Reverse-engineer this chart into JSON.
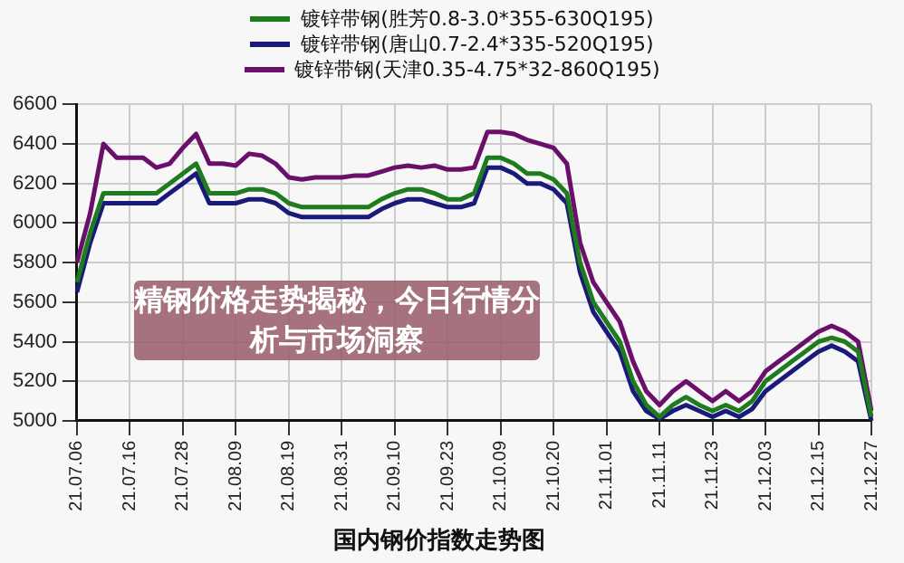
{
  "chart_data": {
    "type": "line",
    "title": "国内钢价指数走势图",
    "annotations": [
      "精钢价格走势揭秘，今日行情分析与市场洞察"
    ],
    "categories": [
      "21.07.06",
      null,
      null,
      null,
      "21.07.16",
      null,
      null,
      null,
      "21.07.28",
      null,
      null,
      null,
      "21.08.09",
      null,
      null,
      null,
      "21.08.19",
      null,
      null,
      null,
      "21.08.31",
      null,
      null,
      null,
      "21.09.10",
      null,
      null,
      null,
      "21.09.23",
      null,
      null,
      null,
      "21.10.09",
      null,
      null,
      null,
      "21.10.20",
      null,
      null,
      null,
      "21.11.01",
      null,
      null,
      null,
      "21.11.11",
      null,
      null,
      null,
      "21.11.23",
      null,
      null,
      null,
      "21.12.03",
      null,
      null,
      null,
      "21.12.15",
      null,
      null,
      null,
      "21.12.27"
    ],
    "series": [
      {
        "name": "镀锌带钢(胜芳0.8-3.0*355-630Q195)",
        "color": "#1e7b1e",
        "values": [
          5700,
          5950,
          6150,
          6150,
          6150,
          6150,
          6150,
          6200,
          6250,
          6300,
          6150,
          6150,
          6150,
          6170,
          6170,
          6150,
          6100,
          6080,
          6080,
          6080,
          6080,
          6080,
          6080,
          6120,
          6150,
          6170,
          6170,
          6150,
          6120,
          6120,
          6150,
          6330,
          6330,
          6300,
          6250,
          6250,
          6220,
          6150,
          5800,
          5600,
          5500,
          5400,
          5200,
          5080,
          5020,
          5080,
          5120,
          5080,
          5050,
          5080,
          5050,
          5100,
          5200,
          5250,
          5300,
          5350,
          5400,
          5420,
          5400,
          5350,
          5020
        ]
      },
      {
        "name": "镀锌带钢(唐山0.7-2.4*335-520Q195)",
        "color": "#1a1a7a",
        "values": [
          5650,
          5900,
          6100,
          6100,
          6100,
          6100,
          6100,
          6150,
          6200,
          6250,
          6100,
          6100,
          6100,
          6120,
          6120,
          6100,
          6050,
          6030,
          6030,
          6030,
          6030,
          6030,
          6030,
          6070,
          6100,
          6120,
          6120,
          6100,
          6080,
          6080,
          6100,
          6280,
          6280,
          6250,
          6200,
          6200,
          6170,
          6100,
          5750,
          5550,
          5450,
          5350,
          5150,
          5050,
          5010,
          5050,
          5080,
          5050,
          5020,
          5050,
          5020,
          5060,
          5150,
          5200,
          5250,
          5300,
          5350,
          5380,
          5350,
          5300,
          5000
        ]
      },
      {
        "name": "镀锌带钢(天津0.35-4.75*32-860Q195)",
        "color": "#6a0f6a",
        "values": [
          5800,
          6050,
          6400,
          6330,
          6330,
          6330,
          6280,
          6300,
          6380,
          6450,
          6300,
          6300,
          6290,
          6350,
          6340,
          6300,
          6230,
          6220,
          6230,
          6230,
          6230,
          6240,
          6240,
          6260,
          6280,
          6290,
          6280,
          6290,
          6270,
          6270,
          6280,
          6460,
          6460,
          6450,
          6420,
          6400,
          6380,
          6300,
          5900,
          5700,
          5600,
          5500,
          5300,
          5150,
          5080,
          5150,
          5200,
          5150,
          5100,
          5150,
          5100,
          5150,
          5250,
          5300,
          5350,
          5400,
          5450,
          5480,
          5450,
          5400,
          5050
        ]
      }
    ],
    "ylim": [
      5000,
      6600
    ],
    "yticks": [
      5000,
      5200,
      5400,
      5600,
      5800,
      6000,
      6200,
      6400,
      6600
    ],
    "grid": true,
    "legend": "top",
    "marker": "none",
    "line_style": "solid"
  }
}
